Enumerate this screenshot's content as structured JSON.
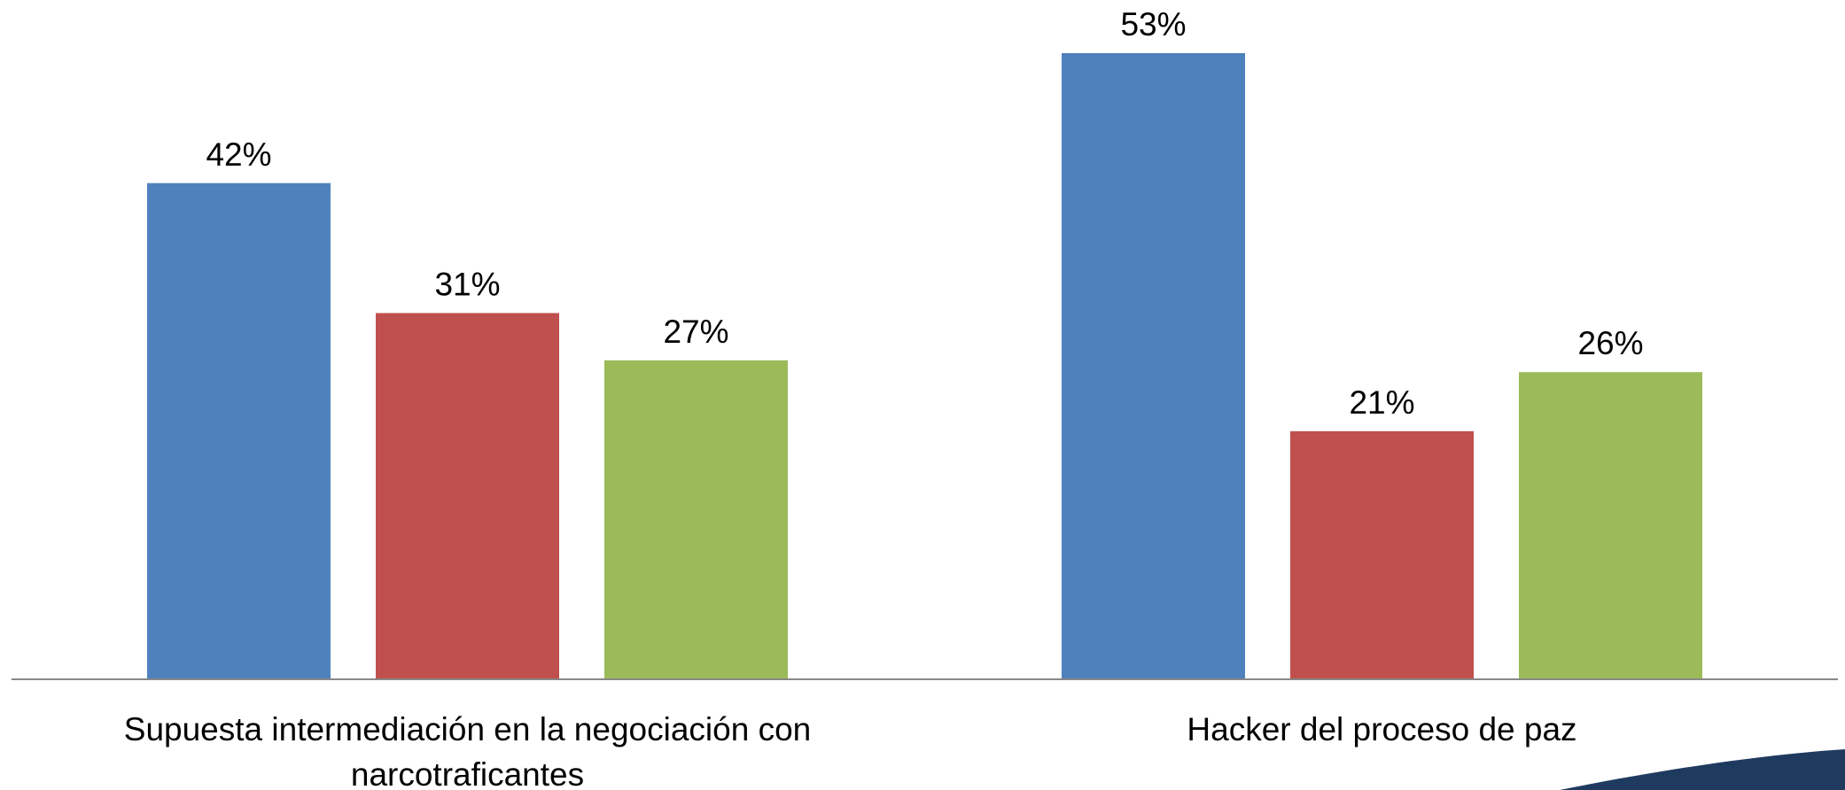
{
  "chart_data": {
    "type": "bar",
    "categories": [
      "Supuesta intermediación en la negociación con narcotraficantes",
      "Hacker del proceso de paz"
    ],
    "series": [
      {
        "color": "#4f81bd",
        "values": [
          42,
          53
        ],
        "value_labels": [
          "42%",
          "53%"
        ]
      },
      {
        "color": "#c0504d",
        "values": [
          31,
          21
        ],
        "value_labels": [
          "31%",
          "21%"
        ]
      },
      {
        "color": "#9bbb59",
        "values": [
          27,
          26
        ],
        "value_labels": [
          "27%",
          "26%"
        ]
      }
    ],
    "ylim": [
      0,
      57.5
    ]
  }
}
